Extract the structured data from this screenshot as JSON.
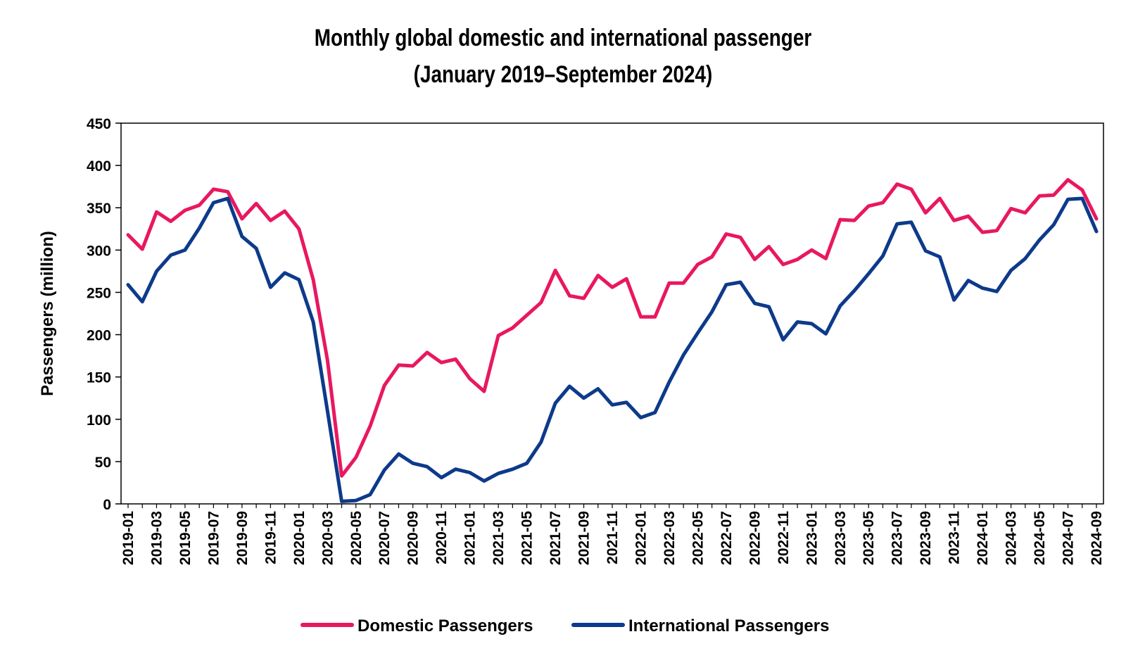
{
  "chart_data": {
    "type": "line",
    "title_line1": "Monthly global domestic and international passenger",
    "title_line2": "(January 2019–September 2024)",
    "ylabel": "Passengers (million)",
    "xlabel": "",
    "ylim": [
      0,
      450
    ],
    "yticks": [
      0,
      50,
      100,
      150,
      200,
      250,
      300,
      350,
      400,
      450
    ],
    "grid": false,
    "legend_position": "bottom",
    "x": [
      "2019-01",
      "2019-02",
      "2019-03",
      "2019-04",
      "2019-05",
      "2019-06",
      "2019-07",
      "2019-08",
      "2019-09",
      "2019-10",
      "2019-11",
      "2019-12",
      "2020-01",
      "2020-02",
      "2020-03",
      "2020-04",
      "2020-05",
      "2020-06",
      "2020-07",
      "2020-08",
      "2020-09",
      "2020-10",
      "2020-11",
      "2020-12",
      "2021-01",
      "2021-02",
      "2021-03",
      "2021-04",
      "2021-05",
      "2021-06",
      "2021-07",
      "2021-08",
      "2021-09",
      "2021-10",
      "2021-11",
      "2021-12",
      "2022-01",
      "2022-02",
      "2022-03",
      "2022-04",
      "2022-05",
      "2022-06",
      "2022-07",
      "2022-08",
      "2022-09",
      "2022-10",
      "2022-11",
      "2022-12",
      "2023-01",
      "2023-02",
      "2023-03",
      "2023-04",
      "2023-05",
      "2023-06",
      "2023-07",
      "2023-08",
      "2023-09",
      "2023-10",
      "2023-11",
      "2023-12",
      "2024-01",
      "2024-02",
      "2024-03",
      "2024-04",
      "2024-05",
      "2024-06",
      "2024-07",
      "2024-08",
      "2024-09"
    ],
    "tick_labels": [
      "2019-01",
      "2019-03",
      "2019-05",
      "2019-07",
      "2019-09",
      "2019-11",
      "2020-01",
      "2020-03",
      "2020-05",
      "2020-07",
      "2020-09",
      "2020-11",
      "2021-01",
      "2021-03",
      "2021-05",
      "2021-07",
      "2021-09",
      "2021-11",
      "2022-01",
      "2022-03",
      "2022-05",
      "2022-07",
      "2022-09",
      "2022-11",
      "2023-01",
      "2023-03",
      "2023-05",
      "2023-07",
      "2023-09",
      "2023-11",
      "2024-01",
      "2024-03",
      "2024-05",
      "2024-07",
      "2024-09"
    ],
    "series": [
      {
        "name": "Domestic Passengers",
        "color": "#e8185f",
        "values": [
          318,
          301,
          345,
          334,
          347,
          353,
          372,
          369,
          337,
          355,
          335,
          346,
          325,
          265,
          170,
          33,
          55,
          92,
          140,
          164,
          163,
          179,
          167,
          171,
          148,
          133,
          199,
          208,
          223,
          238,
          276,
          246,
          243,
          270,
          256,
          266,
          221,
          221,
          261,
          261,
          283,
          292,
          319,
          315,
          289,
          304,
          283,
          289,
          300,
          290,
          336,
          335,
          352,
          356,
          378,
          372,
          344,
          361,
          335,
          340,
          321,
          323,
          349,
          344,
          364,
          365,
          383,
          371,
          337
        ]
      },
      {
        "name": "International Passengers",
        "color": "#0d3a8a",
        "values": [
          259,
          239,
          275,
          294,
          300,
          326,
          356,
          361,
          316,
          302,
          256,
          273,
          265,
          215,
          110,
          3,
          4,
          11,
          40,
          59,
          48,
          44,
          31,
          41,
          37,
          27,
          36,
          41,
          48,
          73,
          119,
          139,
          125,
          136,
          117,
          120,
          102,
          108,
          144,
          176,
          202,
          227,
          259,
          262,
          237,
          233,
          194,
          215,
          213,
          201,
          234,
          252,
          272,
          293,
          331,
          333,
          299,
          292,
          241,
          264,
          255,
          251,
          276,
          290,
          312,
          330,
          360,
          361,
          322
        ]
      }
    ]
  }
}
